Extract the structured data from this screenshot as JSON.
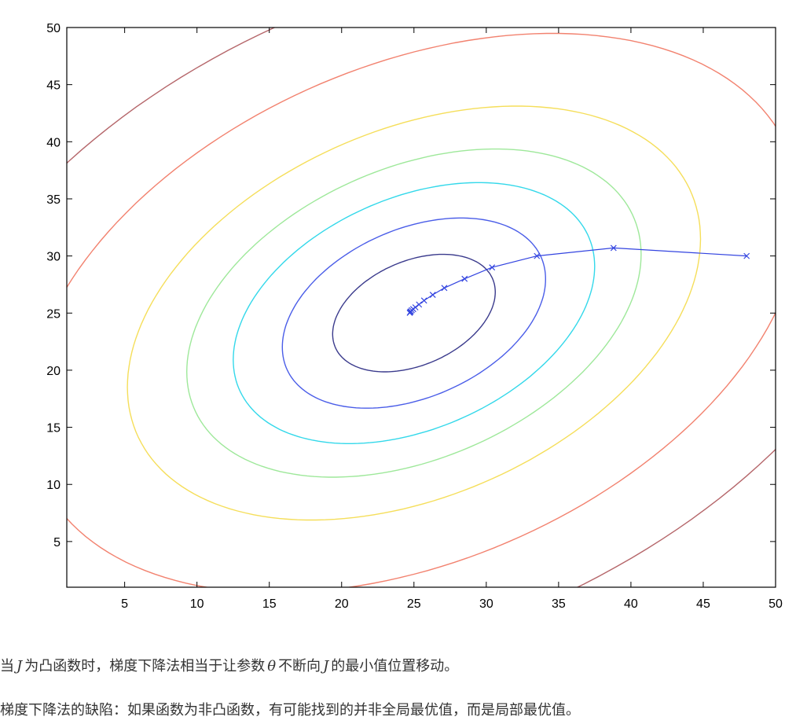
{
  "chart_data": {
    "type": "line",
    "title": "",
    "xlabel": "",
    "ylabel": "",
    "xlim": [
      1,
      50
    ],
    "ylim": [
      1,
      50
    ],
    "xticks": [
      5,
      10,
      15,
      20,
      25,
      30,
      35,
      40,
      45,
      50
    ],
    "yticks": [
      5,
      10,
      15,
      20,
      25,
      30,
      35,
      40,
      45,
      50
    ],
    "grid": false,
    "legend": "none",
    "contours": {
      "center": [
        25,
        25
      ],
      "rotation_deg": 38,
      "aspect": 0.68,
      "levels": [
        {
          "semi_major": 6.3,
          "color": "#3a3a8c"
        },
        {
          "semi_major": 10.2,
          "color": "#4a5de8"
        },
        {
          "semi_major": 14.0,
          "color": "#33d8ea"
        },
        {
          "semi_major": 17.6,
          "color": "#9ee89a"
        },
        {
          "semi_major": 22.2,
          "color": "#f5de5a"
        },
        {
          "semi_major": 30.0,
          "color": "#f2826f"
        },
        {
          "semi_major": 38.5,
          "color": "#b5666a"
        }
      ]
    },
    "series": [
      {
        "color": "#3344e0",
        "marker": "x",
        "x": [
          48.0,
          38.8,
          33.5,
          30.4,
          28.5,
          27.1,
          26.3,
          25.7,
          25.35,
          25.1,
          24.95,
          24.85,
          24.78,
          24.74,
          24.71
        ],
        "y": [
          30.0,
          30.7,
          30.0,
          29.0,
          28.0,
          27.2,
          26.6,
          26.1,
          25.75,
          25.5,
          25.35,
          25.25,
          25.15,
          25.08,
          25.02
        ]
      }
    ]
  },
  "captions": {
    "line1": {
      "t1": "当",
      "m1": "J",
      "t2": "为凸函数时，梯度下降法相当于让参数",
      "m2": "θ",
      "t3": "不断向",
      "m3": "J",
      "t4": "的最小值位置移动。"
    },
    "line2": "梯度下降法的缺陷：如果函数为非凸函数，有可能找到的并非全局最优值，而是局部最优值。"
  }
}
